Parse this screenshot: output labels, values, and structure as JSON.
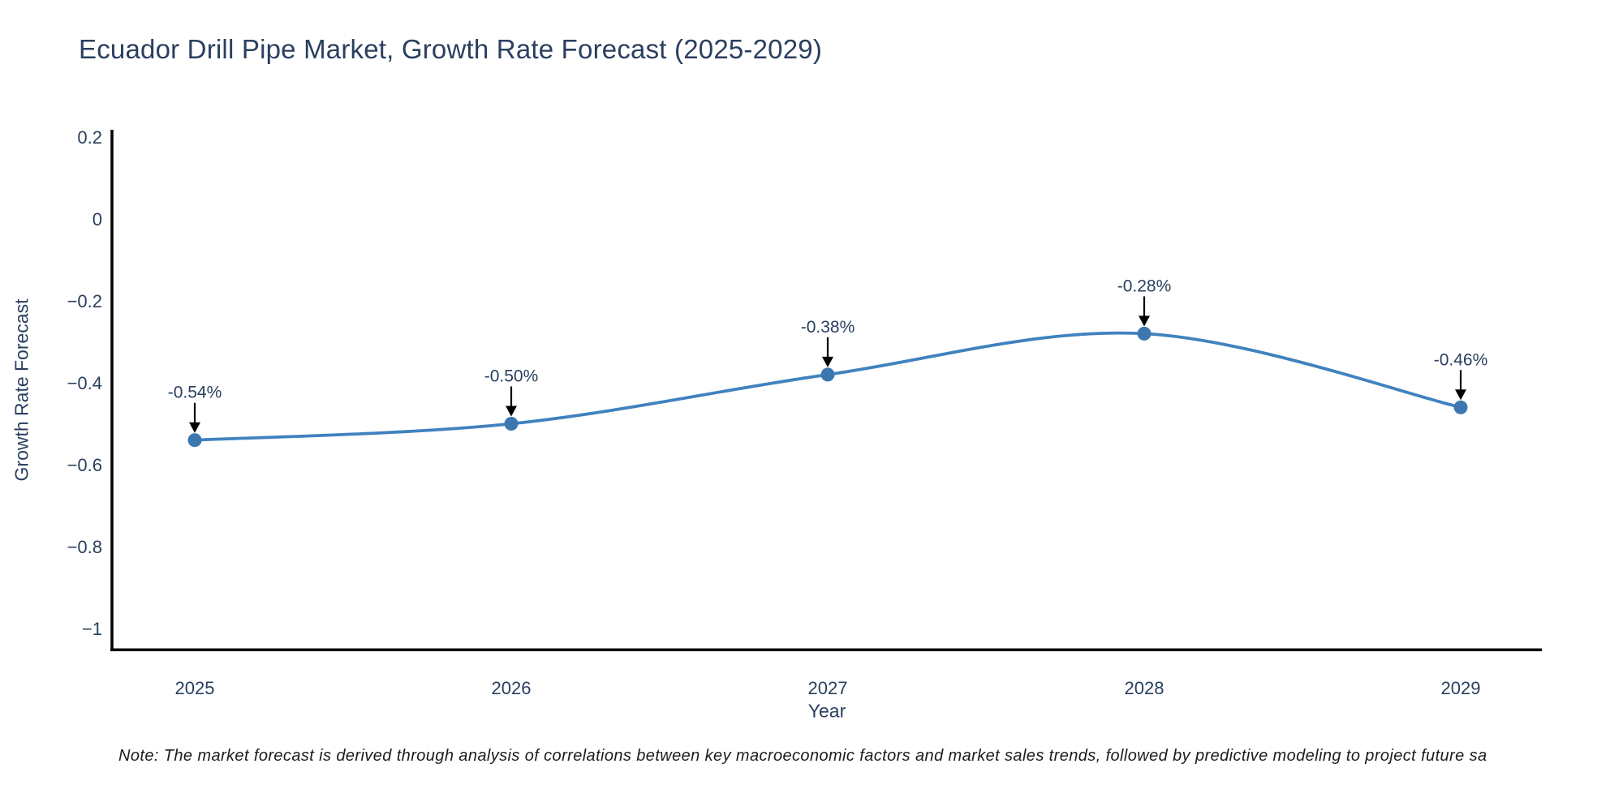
{
  "note": "Note: The market forecast is derived through analysis of correlations between key macroeconomic factors and market sales trends, followed by predictive modeling to project future sa",
  "chart_data": {
    "type": "line",
    "title": "Ecuador Drill Pipe Market, Growth Rate Forecast (2025-2029)",
    "xlabel": "Year",
    "ylabel": "Growth Rate Forecast",
    "x": [
      2025,
      2026,
      2027,
      2028,
      2029
    ],
    "xtick_labels": [
      "2025",
      "2026",
      "2027",
      "2028",
      "2029"
    ],
    "values": [
      -0.54,
      -0.5,
      -0.38,
      -0.28,
      -0.46
    ],
    "point_labels": [
      "-0.54%",
      "-0.50%",
      "-0.38%",
      "-0.28%",
      "-0.46%"
    ],
    "yticks": [
      0.2,
      0,
      -0.2,
      -0.4,
      -0.6,
      -0.8,
      -1
    ],
    "ytick_labels": [
      "0.2",
      "0",
      "−0.2",
      "−0.4",
      "−0.6",
      "−0.8",
      "−1"
    ],
    "ylim": [
      -1.05,
      0.22
    ],
    "xlim": [
      2024.74,
      2029.26
    ],
    "line_shape": "spline",
    "grid": false,
    "legend": false,
    "colors": {
      "line": "#4082bf",
      "marker": "#3c77b0",
      "axis": "#000000",
      "text": "#2a3f5f",
      "annotation_arrow": "#000000",
      "annotation_text": "#2a3f5f",
      "note_text": "#1c1c1c",
      "background": "#ffffff"
    }
  }
}
